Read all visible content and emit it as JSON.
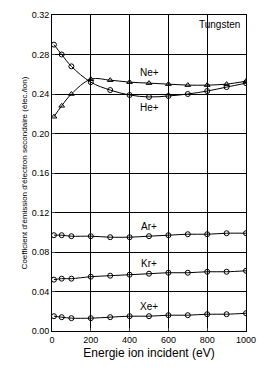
{
  "chart_data": {
    "type": "line",
    "annotations": [
      {
        "text": "Tungsten"
      }
    ],
    "x_label": "Energie ion incident (eV)",
    "y_label": "Coefficient d'émission d'électron secondaire (élec./ion)",
    "x": [
      10,
      50,
      100,
      200,
      300,
      400,
      500,
      600,
      700,
      800,
      900,
      1000
    ],
    "series": [
      {
        "name": "Ne+",
        "color": "#000000",
        "marker": "triangle-open",
        "line_style": "solid",
        "values": [
          0.217,
          0.228,
          0.24,
          0.255,
          0.254,
          0.252,
          0.251,
          0.25,
          0.249,
          0.249,
          0.25,
          0.253
        ]
      },
      {
        "name": "He+",
        "color": "#000000",
        "marker": "circle-open",
        "line_style": "solid",
        "values": [
          0.29,
          0.28,
          0.268,
          0.252,
          0.244,
          0.239,
          0.237,
          0.238,
          0.24,
          0.243,
          0.247,
          0.251
        ]
      },
      {
        "name": "Ar+",
        "color": "#000000",
        "marker": "circle-open",
        "line_style": "solid",
        "values": [
          0.097,
          0.097,
          0.096,
          0.096,
          0.095,
          0.095,
          0.096,
          0.097,
          0.098,
          0.098,
          0.099,
          0.099
        ]
      },
      {
        "name": "Kr+",
        "color": "#000000",
        "marker": "circle-open",
        "line_style": "solid",
        "values": [
          0.052,
          0.053,
          0.053,
          0.055,
          0.056,
          0.057,
          0.058,
          0.059,
          0.059,
          0.06,
          0.06,
          0.061
        ]
      },
      {
        "name": "Xe+",
        "color": "#000000",
        "marker": "circle-open",
        "line_style": "solid",
        "values": [
          0.015,
          0.014,
          0.013,
          0.013,
          0.014,
          0.015,
          0.015,
          0.016,
          0.016,
          0.017,
          0.017,
          0.018
        ]
      }
    ],
    "xlim": [
      0,
      1000
    ],
    "xticks": [
      0,
      200,
      400,
      600,
      800,
      1000
    ],
    "ylim": [
      0,
      0.32
    ],
    "yticks": [
      {
        "value": 0,
        "label": "0.00"
      },
      0.04,
      0.08,
      0.12,
      0.16,
      {
        "value": 0.2,
        "label": "0.20"
      },
      0.24,
      0.28,
      0.32
    ],
    "grid": true
  }
}
